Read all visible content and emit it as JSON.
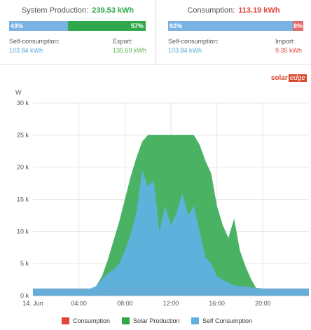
{
  "production": {
    "title": "System Production:",
    "value": "239.53 kWh",
    "self_pct": "43%",
    "export_pct": "57%",
    "self_fraction": 0.43,
    "self_label": "Self-consumption:",
    "self_value": "103.84 kWh",
    "export_label": "Export:",
    "export_value": "135.69 kWh"
  },
  "consumption": {
    "title": "Consumption:",
    "value": "113.19 kWh",
    "self_pct": "92%",
    "import_pct": "8%",
    "self_fraction": 0.92,
    "self_label": "Self-consumption:",
    "self_value": "103.84 kWh",
    "import_label": "Import:",
    "import_value": "9.35 kWh"
  },
  "brand": {
    "text": "solar",
    "accent": "edge"
  },
  "colors": {
    "self": "#7ab3e3",
    "export": "#2ea84a",
    "consumption_red": "#e0443b",
    "import": "#e56a6a",
    "solar_fill": "#3fae5b",
    "self_fill": "#5fb1e0",
    "cons_fill": "#e35a55"
  },
  "chart_data": {
    "type": "area",
    "ylabel": "W",
    "ylim": [
      0,
      30000
    ],
    "yticks": [
      0,
      5000,
      10000,
      15000,
      20000,
      25000,
      30000
    ],
    "ytick_labels": [
      "0 k",
      "5 k",
      "10 k",
      "15 k",
      "20 k",
      "25 k",
      "30 k"
    ],
    "xlim": [
      0,
      24
    ],
    "xticks": [
      0,
      4,
      8,
      12,
      16,
      20
    ],
    "xtick_labels": [
      "14. Jun",
      "04:00",
      "08:00",
      "12:00",
      "16:00",
      "20:00"
    ],
    "grid": true,
    "legend_position": "bottom",
    "series": [
      {
        "name": "Consumption",
        "x": [
          0,
          2,
          4,
          5,
          6,
          7,
          8,
          9,
          10,
          11,
          12,
          13,
          14,
          15,
          16,
          17,
          18,
          19,
          20,
          21,
          22,
          23,
          24
        ],
        "values": [
          1100,
          1100,
          1100,
          1100,
          1100,
          1200,
          1300,
          1300,
          1300,
          1300,
          1300,
          1300,
          1300,
          1300,
          1300,
          1300,
          1300,
          1300,
          1100,
          1100,
          1100,
          1100,
          1100
        ]
      },
      {
        "name": "Solar Production",
        "x": [
          0,
          4.5,
          5,
          5.5,
          6,
          6.5,
          7,
          7.5,
          8,
          8.5,
          9,
          9.5,
          10,
          10.5,
          11,
          12,
          13,
          14,
          14.5,
          15,
          15.5,
          16,
          16.5,
          17,
          17.5,
          18,
          18.5,
          19,
          19.5,
          20,
          20.5,
          24
        ],
        "values": [
          0,
          0,
          500,
          1500,
          3000,
          5500,
          8500,
          11500,
          15000,
          18500,
          21500,
          24000,
          25000,
          25000,
          25000,
          25000,
          25000,
          25000,
          23500,
          21000,
          19000,
          14000,
          11000,
          9000,
          12000,
          7000,
          4500,
          2500,
          900,
          300,
          0,
          0
        ]
      },
      {
        "name": "Self Consumption",
        "x": [
          0,
          5,
          5.5,
          6,
          6.5,
          7,
          7.5,
          8,
          8.5,
          9,
          9.5,
          10,
          10.5,
          11,
          11.5,
          12,
          12.5,
          13,
          13.5,
          14,
          14.5,
          15,
          15.5,
          16,
          16.5,
          17,
          17.5,
          18,
          18.5,
          19,
          19.5,
          20,
          24
        ],
        "values": [
          1100,
          1100,
          1500,
          2500,
          3500,
          4000,
          5000,
          7000,
          9500,
          13000,
          19500,
          17000,
          18000,
          10000,
          14000,
          11000,
          13000,
          16000,
          12500,
          14000,
          10000,
          6000,
          5000,
          3000,
          2500,
          2000,
          1600,
          1500,
          1400,
          1300,
          1200,
          1100,
          1100
        ]
      }
    ],
    "legend": [
      "Consumption",
      "Solar Production",
      "Self Consumption"
    ]
  }
}
